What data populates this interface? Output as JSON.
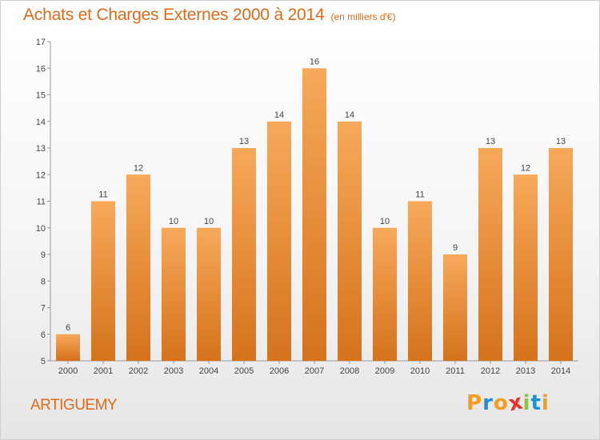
{
  "header": {
    "title": "Achats et Charges Externes 2000 à 2014",
    "subtitle": "(en milliers d'€)"
  },
  "footer": {
    "commune": "ARTIGUEMY",
    "logo_text": "Proxiti"
  },
  "colors": {
    "accent": "#e06a1a",
    "bar_top": "#f7a95a",
    "bar_bottom": "#d5721c",
    "logo": [
      "#f39c1e",
      "#1f8fd6",
      "#f39c1e",
      "#e5332a",
      "#8cc63f",
      "#1f8fd6",
      "#f39c1e"
    ]
  },
  "chart_data": {
    "type": "bar",
    "categories": [
      "2000",
      "2001",
      "2002",
      "2003",
      "2004",
      "2005",
      "2006",
      "2007",
      "2008",
      "2009",
      "2010",
      "2011",
      "2012",
      "2013",
      "2014"
    ],
    "values": [
      6,
      11,
      12,
      10,
      10,
      13,
      14,
      16,
      14,
      10,
      11,
      9,
      13,
      12,
      13
    ],
    "data_labels": [
      "6",
      "11",
      "12",
      "10",
      "10",
      "13",
      "14",
      "16",
      "14",
      "10",
      "11",
      "9",
      "13",
      "12",
      "13"
    ],
    "yticks": [
      "5",
      "6",
      "7",
      "8",
      "9",
      "10",
      "11",
      "12",
      "13",
      "14",
      "15",
      "16",
      "17"
    ],
    "ylim": [
      5,
      17
    ],
    "grid": false
  }
}
